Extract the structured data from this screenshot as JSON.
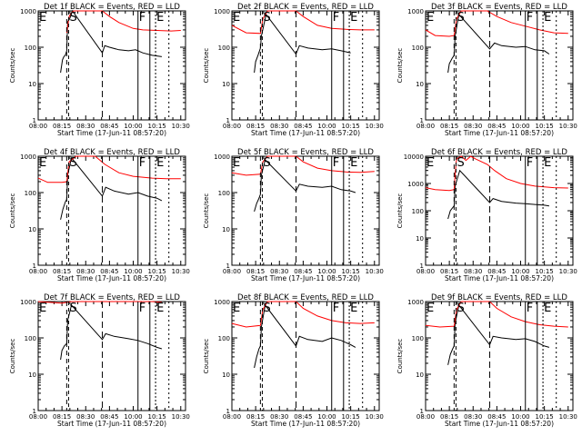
{
  "figure": {
    "x_tick_labels": [
      "08:00",
      "08:15",
      "08:30",
      "08:45",
      "10:00",
      "10:15",
      "10:30"
    ],
    "y_tick_labels": [
      "1",
      "10",
      "100",
      "1000"
    ],
    "y_tick_labels_wide": [
      "1",
      "10",
      "100",
      "1000",
      "10000"
    ],
    "xlabel": "Start Time (17-Jun-11 08:57:20)",
    "ylabel": "Counts/sec",
    "markers": {
      "E": "E",
      "S": "S",
      "F": "F"
    },
    "colors": {
      "events": "#000000",
      "lld": "#ff0000",
      "axes": "#000000"
    }
  },
  "chart_data": [
    {
      "type": "line",
      "scale": "log",
      "title": "Det 1f BLACK = Events, RED = LLD",
      "ylim": [
        1,
        1000
      ],
      "series": [
        {
          "color": "#000000",
          "points": [
            [
              0.47,
              20
            ],
            [
              0.51,
              45
            ],
            [
              0.54,
              55
            ],
            [
              0.57,
              60
            ],
            [
              0.6,
              80
            ],
            [
              0.62,
              500
            ],
            [
              0.66,
              600
            ],
            [
              0.68,
              700
            ],
            [
              0.72,
              1000
            ],
            [
              0.72,
              1000
            ],
            [
              1.35,
              70
            ],
            [
              1.4,
              110
            ],
            [
              1.5,
              100
            ],
            [
              1.7,
              85
            ],
            [
              1.9,
              80
            ],
            [
              2.05,
              85
            ],
            [
              2.2,
              70
            ],
            [
              2.4,
              60
            ],
            [
              2.6,
              55
            ]
          ]
        },
        {
          "color": "#ff0000",
          "points": [
            [
              0.6,
              250
            ],
            [
              0.65,
              700
            ],
            [
              0.7,
              900
            ],
            [
              0.75,
              1000
            ],
            [
              1.35,
              1000
            ],
            [
              1.5,
              700
            ],
            [
              1.7,
              480
            ],
            [
              2.0,
              330
            ],
            [
              2.2,
              300
            ],
            [
              2.5,
              290
            ],
            [
              2.8,
              280
            ],
            [
              3.0,
              290
            ]
          ]
        }
      ]
    },
    {
      "type": "line",
      "scale": "log",
      "title": "Det 2f BLACK = Events, RED = LLD",
      "ylim": [
        1,
        1000
      ],
      "series": [
        {
          "color": "#000000",
          "points": [
            [
              0.47,
              20
            ],
            [
              0.5,
              40
            ],
            [
              0.55,
              60
            ],
            [
              0.6,
              95
            ],
            [
              0.62,
              200
            ],
            [
              0.72,
              800
            ],
            [
              1.35,
              65
            ],
            [
              1.42,
              110
            ],
            [
              1.6,
              95
            ],
            [
              1.9,
              85
            ],
            [
              2.1,
              90
            ],
            [
              2.3,
              80
            ],
            [
              2.5,
              70
            ]
          ]
        },
        {
          "color": "#ff0000",
          "points": [
            [
              0.0,
              400
            ],
            [
              0.3,
              250
            ],
            [
              0.6,
              240
            ],
            [
              0.65,
              600
            ],
            [
              0.75,
              1000
            ],
            [
              1.35,
              1000
            ],
            [
              1.5,
              700
            ],
            [
              1.8,
              400
            ],
            [
              2.1,
              330
            ],
            [
              2.4,
              310
            ],
            [
              2.7,
              300
            ],
            [
              3.0,
              300
            ]
          ]
        }
      ]
    },
    {
      "type": "line",
      "scale": "log",
      "title": "Det 3f BLACK = Events, RED = LLD",
      "ylim": [
        1,
        1000
      ],
      "series": [
        {
          "color": "#000000",
          "points": [
            [
              0.47,
              20
            ],
            [
              0.5,
              35
            ],
            [
              0.56,
              50
            ],
            [
              0.6,
              60
            ],
            [
              0.62,
              200
            ],
            [
              0.7,
              800
            ],
            [
              1.35,
              90
            ],
            [
              1.45,
              130
            ],
            [
              1.6,
              110
            ],
            [
              1.9,
              100
            ],
            [
              2.1,
              105
            ],
            [
              2.3,
              85
            ],
            [
              2.5,
              80
            ],
            [
              2.6,
              65
            ]
          ]
        },
        {
          "color": "#ff0000",
          "points": [
            [
              0.0,
              300
            ],
            [
              0.2,
              210
            ],
            [
              0.5,
              200
            ],
            [
              0.6,
              210
            ],
            [
              0.65,
              600
            ],
            [
              0.75,
              1000
            ],
            [
              1.3,
              1000
            ],
            [
              1.5,
              700
            ],
            [
              1.8,
              480
            ],
            [
              2.1,
              380
            ],
            [
              2.4,
              300
            ],
            [
              2.7,
              250
            ],
            [
              3.0,
              240
            ]
          ]
        }
      ]
    },
    {
      "type": "line",
      "scale": "log",
      "title": "Det 4f BLACK = Events, RED = LLD",
      "ylim": [
        1,
        1000
      ],
      "series": [
        {
          "color": "#000000",
          "points": [
            [
              0.47,
              18
            ],
            [
              0.52,
              35
            ],
            [
              0.57,
              55
            ],
            [
              0.6,
              65
            ],
            [
              0.62,
              300
            ],
            [
              0.7,
              900
            ],
            [
              1.35,
              80
            ],
            [
              1.42,
              140
            ],
            [
              1.6,
              110
            ],
            [
              1.9,
              90
            ],
            [
              2.1,
              100
            ],
            [
              2.3,
              80
            ],
            [
              2.5,
              70
            ],
            [
              2.6,
              60
            ]
          ]
        },
        {
          "color": "#ff0000",
          "points": [
            [
              0.0,
              250
            ],
            [
              0.2,
              190
            ],
            [
              0.5,
              190
            ],
            [
              0.6,
              200
            ],
            [
              0.65,
              700
            ],
            [
              0.8,
              1000
            ],
            [
              1.2,
              1000
            ],
            [
              1.4,
              600
            ],
            [
              1.7,
              350
            ],
            [
              2.0,
              280
            ],
            [
              2.4,
              250
            ],
            [
              2.7,
              240
            ],
            [
              3.0,
              240
            ]
          ]
        }
      ]
    },
    {
      "type": "line",
      "scale": "log",
      "title": "Det 5f BLACK = Events, RED = LLD",
      "ylim": [
        1,
        1000
      ],
      "series": [
        {
          "color": "#000000",
          "points": [
            [
              0.47,
              30
            ],
            [
              0.52,
              50
            ],
            [
              0.57,
              70
            ],
            [
              0.6,
              90
            ],
            [
              0.62,
              300
            ],
            [
              0.7,
              800
            ],
            [
              1.35,
              110
            ],
            [
              1.42,
              170
            ],
            [
              1.6,
              150
            ],
            [
              1.9,
              140
            ],
            [
              2.1,
              150
            ],
            [
              2.3,
              120
            ],
            [
              2.5,
              110
            ],
            [
              2.6,
              100
            ]
          ]
        },
        {
          "color": "#ff0000",
          "points": [
            [
              0.0,
              350
            ],
            [
              0.3,
              300
            ],
            [
              0.6,
              320
            ],
            [
              0.65,
              700
            ],
            [
              0.75,
              1000
            ],
            [
              1.35,
              1000
            ],
            [
              1.5,
              700
            ],
            [
              1.8,
              470
            ],
            [
              2.1,
              400
            ],
            [
              2.4,
              370
            ],
            [
              2.7,
              360
            ],
            [
              3.0,
              380
            ]
          ]
        }
      ]
    },
    {
      "type": "line",
      "scale": "log",
      "title": "Det 6f BLACK = Events, RED = LLD",
      "ylim": [
        1,
        10000
      ],
      "series": [
        {
          "color": "#000000",
          "points": [
            [
              0.47,
              50
            ],
            [
              0.52,
              100
            ],
            [
              0.57,
              130
            ],
            [
              0.6,
              150
            ],
            [
              0.62,
              800
            ],
            [
              0.72,
              3000
            ],
            [
              1.35,
              200
            ],
            [
              1.42,
              280
            ],
            [
              1.6,
              220
            ],
            [
              1.9,
              190
            ],
            [
              2.1,
              180
            ],
            [
              2.3,
              170
            ],
            [
              2.5,
              160
            ],
            [
              2.6,
              150
            ]
          ]
        },
        {
          "color": "#ff0000",
          "points": [
            [
              0.0,
              700
            ],
            [
              0.2,
              600
            ],
            [
              0.5,
              550
            ],
            [
              0.6,
              600
            ],
            [
              0.62,
              2000
            ],
            [
              0.65,
              8000
            ],
            [
              0.75,
              10000
            ],
            [
              0.85,
              7000
            ],
            [
              0.95,
              10000
            ],
            [
              1.05,
              8000
            ],
            [
              1.3,
              5000
            ],
            [
              1.45,
              3000
            ],
            [
              1.7,
              1500
            ],
            [
              2.0,
              1000
            ],
            [
              2.3,
              800
            ],
            [
              2.7,
              700
            ],
            [
              3.0,
              680
            ]
          ]
        }
      ]
    },
    {
      "type": "line",
      "scale": "log",
      "title": "Det 7f BLACK = Events, RED = LLD",
      "ylim": [
        1,
        1000
      ],
      "series": [
        {
          "color": "#000000",
          "points": [
            [
              0.47,
              25
            ],
            [
              0.5,
              45
            ],
            [
              0.55,
              60
            ],
            [
              0.6,
              70
            ],
            [
              0.62,
              300
            ],
            [
              0.7,
              800
            ],
            [
              1.35,
              90
            ],
            [
              1.42,
              130
            ],
            [
              1.6,
              110
            ],
            [
              1.9,
              95
            ],
            [
              2.1,
              85
            ],
            [
              2.3,
              70
            ],
            [
              2.5,
              55
            ],
            [
              2.6,
              50
            ]
          ]
        },
        {
          "color": "#ff0000",
          "points": [
            [
              0.0,
              1000
            ],
            [
              0.5,
              900
            ],
            [
              0.6,
              950
            ],
            [
              0.7,
              1000
            ],
            [
              2.0,
              1000
            ],
            [
              2.4,
              1000
            ],
            [
              2.6,
              950
            ]
          ]
        }
      ]
    },
    {
      "type": "line",
      "scale": "log",
      "title": "Det 8f BLACK = Events, RED = LLD",
      "ylim": [
        1,
        1000
      ],
      "series": [
        {
          "color": "#000000",
          "points": [
            [
              0.47,
              15
            ],
            [
              0.52,
              30
            ],
            [
              0.57,
              50
            ],
            [
              0.6,
              60
            ],
            [
              0.62,
              200
            ],
            [
              0.7,
              800
            ],
            [
              1.35,
              60
            ],
            [
              1.42,
              110
            ],
            [
              1.6,
              90
            ],
            [
              1.9,
              80
            ],
            [
              2.1,
              100
            ],
            [
              2.3,
              85
            ],
            [
              2.5,
              65
            ],
            [
              2.6,
              55
            ]
          ]
        },
        {
          "color": "#ff0000",
          "points": [
            [
              0.0,
              250
            ],
            [
              0.3,
              200
            ],
            [
              0.6,
              220
            ],
            [
              0.65,
              600
            ],
            [
              0.75,
              1000
            ],
            [
              1.35,
              1000
            ],
            [
              1.5,
              650
            ],
            [
              1.8,
              400
            ],
            [
              2.1,
              300
            ],
            [
              2.4,
              260
            ],
            [
              2.7,
              250
            ],
            [
              3.0,
              260
            ]
          ]
        }
      ]
    },
    {
      "type": "line",
      "scale": "log",
      "title": "Det 9f BLACK = Events, RED = LLD",
      "ylim": [
        1,
        1000
      ],
      "series": [
        {
          "color": "#000000",
          "points": [
            [
              0.47,
              18
            ],
            [
              0.52,
              35
            ],
            [
              0.57,
              50
            ],
            [
              0.6,
              60
            ],
            [
              0.62,
              250
            ],
            [
              0.7,
              800
            ],
            [
              1.35,
              65
            ],
            [
              1.42,
              110
            ],
            [
              1.6,
              100
            ],
            [
              1.9,
              90
            ],
            [
              2.1,
              95
            ],
            [
              2.3,
              80
            ],
            [
              2.5,
              60
            ],
            [
              2.6,
              55
            ]
          ]
        },
        {
          "color": "#ff0000",
          "points": [
            [
              0.0,
              220
            ],
            [
              0.3,
              200
            ],
            [
              0.6,
              210
            ],
            [
              0.65,
              600
            ],
            [
              0.75,
              1000
            ],
            [
              1.35,
              1000
            ],
            [
              1.5,
              650
            ],
            [
              1.8,
              380
            ],
            [
              2.1,
              280
            ],
            [
              2.4,
              230
            ],
            [
              2.7,
              210
            ],
            [
              3.0,
              200
            ]
          ]
        }
      ]
    }
  ]
}
